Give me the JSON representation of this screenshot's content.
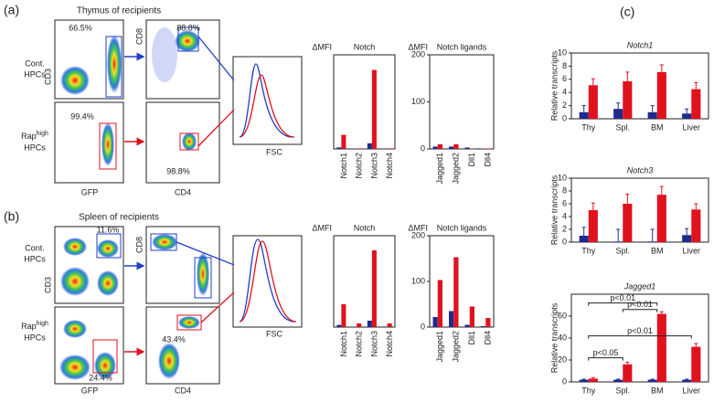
{
  "figure": {
    "a": {
      "label": "(a)",
      "title": "Thymus of recipients",
      "gates": [
        "66.5%",
        "88.8%",
        "99.4%",
        "98.8%"
      ]
    },
    "b": {
      "label": "(b)",
      "title": "Spleen of recipients",
      "gates": [
        "11.6%",
        "24.4%",
        "43.4%"
      ]
    },
    "c": {
      "label": "(c)"
    },
    "rows": {
      "cont": [
        "Cont.",
        "HPCs"
      ],
      "rap": [
        "Rap",
        "high",
        "HPCs"
      ]
    },
    "axes": {
      "cd3": "CD3",
      "gfp": "GFP",
      "cd8": "CD8",
      "cd4": "CD4",
      "fsc": "FSC"
    }
  },
  "chart_data": [
    {
      "type": "bar",
      "title": "Notch",
      "ylabel": "ΔMFI",
      "categories": [
        "Notch1",
        "Notch2",
        "Notch3",
        "Notch4"
      ],
      "ylim": [
        0,
        500
      ],
      "series": [
        {
          "color": "#1f2a8c",
          "values": [
            8,
            2,
            30,
            2
          ]
        },
        {
          "color": "#e0121e",
          "values": [
            75,
            3,
            420,
            3
          ]
        }
      ]
    },
    {
      "type": "bar",
      "title": "Notch ligands",
      "ylabel": "ΔMFI",
      "categories": [
        "Jagged1",
        "Jagged2",
        "Dll1",
        "Dll4"
      ],
      "ylim": [
        0,
        200
      ],
      "yticks": [
        0,
        100,
        200
      ],
      "series": [
        {
          "color": "#1f2a8c",
          "values": [
            5,
            5,
            3,
            1
          ]
        },
        {
          "color": "#e0121e",
          "values": [
            10,
            10,
            1,
            1
          ]
        }
      ]
    },
    {
      "type": "bar",
      "title": "Notch",
      "ylabel": "ΔMFI",
      "categories": [
        "Notch1",
        "Notch2",
        "Notch3",
        "Notch4"
      ],
      "ylim": [
        0,
        500
      ],
      "series": [
        {
          "color": "#1f2a8c",
          "values": [
            12,
            2,
            35,
            3
          ]
        },
        {
          "color": "#e0121e",
          "values": [
            125,
            20,
            420,
            20
          ]
        }
      ]
    },
    {
      "type": "bar",
      "title": "Notch ligands",
      "ylabel": "ΔMFI",
      "categories": [
        "Jagged1",
        "Jagged2",
        "Dll1",
        "Dll4"
      ],
      "ylim": [
        0,
        200
      ],
      "yticks": [
        0,
        100,
        200
      ],
      "series": [
        {
          "color": "#1f2a8c",
          "values": [
            22,
            35,
            5,
            2
          ]
        },
        {
          "color": "#e0121e",
          "values": [
            103,
            153,
            45,
            20
          ]
        }
      ]
    },
    {
      "type": "bar",
      "title": "Notch1",
      "ylabel": "Relative transcripts",
      "categories": [
        "Thy",
        "Spl.",
        "BM",
        "Liver"
      ],
      "ylim": [
        0,
        10
      ],
      "yticks": [
        0,
        2,
        4,
        6,
        8,
        10
      ],
      "series": [
        {
          "color": "#1f2a8c",
          "values": [
            1,
            1.5,
            1,
            0.8
          ],
          "errors": [
            1,
            0.9,
            1,
            0.7
          ]
        },
        {
          "color": "#e0121e",
          "values": [
            5.1,
            5.7,
            7.1,
            4.5
          ],
          "errors": [
            1,
            1.4,
            1.1,
            1
          ]
        }
      ]
    },
    {
      "type": "bar",
      "title": "Notch3",
      "ylabel": "Relative transcripts",
      "categories": [
        "Thy",
        "Spl.",
        "BM",
        "Liver"
      ],
      "ylim": [
        0,
        10
      ],
      "yticks": [
        0,
        2,
        4,
        6,
        8,
        10
      ],
      "series": [
        {
          "color": "#1f2a8c",
          "values": [
            1,
            0.1,
            0.1,
            1.1
          ],
          "errors": [
            1.3,
            1.9,
            1.9,
            1
          ]
        },
        {
          "color": "#e0121e",
          "values": [
            5,
            6,
            7.4,
            5.1
          ],
          "errors": [
            1.1,
            1.5,
            1.3,
            0.9
          ]
        }
      ]
    },
    {
      "type": "bar",
      "title": "Jagged1",
      "ylabel": "Relative transcripts",
      "categories": [
        "Thy",
        "Spl.",
        "BM",
        "Liver"
      ],
      "ylim": [
        0,
        80
      ],
      "yticks": [
        0,
        20,
        40,
        60
      ],
      "series": [
        {
          "color": "#1f2a8c",
          "values": [
            2,
            2,
            2,
            2
          ],
          "errors": [
            0.5,
            0.5,
            0.5,
            0.5
          ]
        },
        {
          "color": "#e0121e",
          "values": [
            3,
            16,
            62,
            32
          ],
          "errors": [
            1,
            2,
            2,
            3
          ]
        }
      ],
      "annotations": [
        "p<0.01",
        "p<0.01",
        "p<0.01",
        "p<0.05"
      ]
    }
  ]
}
